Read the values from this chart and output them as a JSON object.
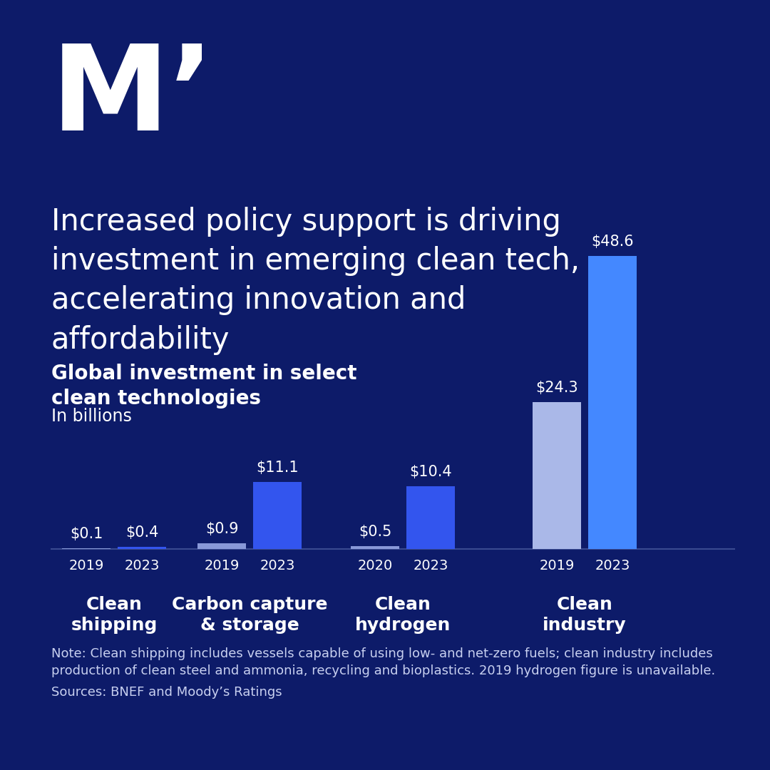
{
  "background_color": "#0d1b69",
  "title_text": "Increased policy support is driving\ninvestment in emerging clean tech,\naccelerating innovation and\naffordability",
  "subtitle_bold": "Global investment in select\nclean technologies",
  "subtitle_unit": "In billions",
  "logo_text": "M’",
  "categories": [
    {
      "name": "Clean\nshipping",
      "year1": "2019",
      "year2": "2023",
      "val1": 0.1,
      "val2": 0.4,
      "color1": "#8898d8",
      "color2": "#3355ee"
    },
    {
      "name": "Carbon capture\n& storage",
      "year1": "2019",
      "year2": "2023",
      "val1": 0.9,
      "val2": 11.1,
      "color1": "#8898d8",
      "color2": "#3355ee"
    },
    {
      "name": "Clean\nhydrogen",
      "year1": "2020",
      "year2": "2023",
      "val1": 0.5,
      "val2": 10.4,
      "color1": "#8898d8",
      "color2": "#3355ee"
    },
    {
      "name": "Clean\nindustry",
      "year1": "2019",
      "year2": "2023",
      "val1": 24.3,
      "val2": 48.6,
      "color1": "#aab8e8",
      "color2": "#4488ff"
    }
  ],
  "note_text": "Note: Clean shipping includes vessels capable of using low- and net-zero fuels; clean industry includes\nproduction of clean steel and ammonia, recycling and bioplastics. 2019 hydrogen figure is unavailable.",
  "source_text": "Sources: BNEF and Moody’s Ratings",
  "text_color": "#ffffff",
  "year_label_color": "#ffffff",
  "category_label_color": "#ffffff",
  "note_color": "#c8d0f0",
  "axis_line_color": "#3a4a90"
}
